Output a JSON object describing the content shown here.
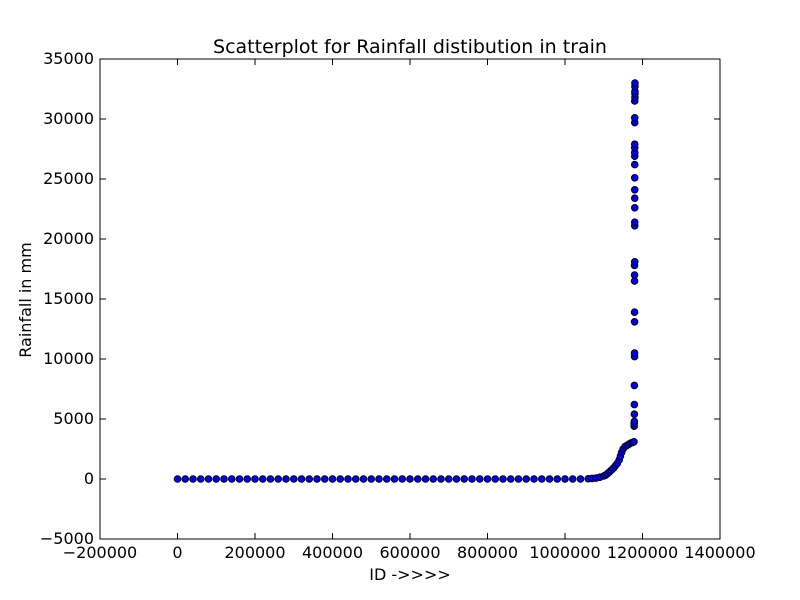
{
  "chart_data": {
    "type": "scatter",
    "title": "Scatterplot for Rainfall distibution in train",
    "xlabel": "ID ->>>>",
    "ylabel": "Rainfall in mm",
    "xlim": [
      -200000,
      1400000
    ],
    "ylim": [
      -5000,
      35000
    ],
    "xticks": [
      -200000,
      0,
      200000,
      400000,
      600000,
      800000,
      1000000,
      1200000,
      1400000
    ],
    "yticks": [
      -5000,
      0,
      5000,
      10000,
      15000,
      20000,
      25000,
      30000,
      35000
    ],
    "grid": false,
    "marker_color": "#0000ff",
    "marker_edge_color": "#000000",
    "series": [
      {
        "points": [
          [
            0,
            0
          ],
          [
            20000,
            0
          ],
          [
            40000,
            0
          ],
          [
            60000,
            0
          ],
          [
            80000,
            0
          ],
          [
            100000,
            0
          ],
          [
            120000,
            0
          ],
          [
            140000,
            0
          ],
          [
            160000,
            0
          ],
          [
            180000,
            0
          ],
          [
            200000,
            0
          ],
          [
            220000,
            0
          ],
          [
            240000,
            0
          ],
          [
            260000,
            0
          ],
          [
            280000,
            0
          ],
          [
            300000,
            0
          ],
          [
            320000,
            0
          ],
          [
            340000,
            0
          ],
          [
            360000,
            0
          ],
          [
            380000,
            0
          ],
          [
            400000,
            0
          ],
          [
            420000,
            0
          ],
          [
            440000,
            0
          ],
          [
            460000,
            0
          ],
          [
            480000,
            0
          ],
          [
            500000,
            0
          ],
          [
            520000,
            0
          ],
          [
            540000,
            0
          ],
          [
            560000,
            0
          ],
          [
            580000,
            0
          ],
          [
            600000,
            0
          ],
          [
            620000,
            0
          ],
          [
            640000,
            0
          ],
          [
            660000,
            0
          ],
          [
            680000,
            0
          ],
          [
            700000,
            0
          ],
          [
            720000,
            0
          ],
          [
            740000,
            0
          ],
          [
            760000,
            0
          ],
          [
            780000,
            0
          ],
          [
            800000,
            0
          ],
          [
            820000,
            0
          ],
          [
            840000,
            0
          ],
          [
            860000,
            0
          ],
          [
            880000,
            0
          ],
          [
            900000,
            0
          ],
          [
            920000,
            0
          ],
          [
            940000,
            0
          ],
          [
            960000,
            0
          ],
          [
            980000,
            0
          ],
          [
            1000000,
            0
          ],
          [
            1020000,
            0
          ],
          [
            1040000,
            0
          ],
          [
            1060000,
            20
          ],
          [
            1070000,
            50
          ],
          [
            1080000,
            80
          ],
          [
            1090000,
            150
          ],
          [
            1100000,
            250
          ],
          [
            1105000,
            330
          ],
          [
            1110000,
            450
          ],
          [
            1115000,
            600
          ],
          [
            1120000,
            750
          ],
          [
            1125000,
            900
          ],
          [
            1130000,
            1100
          ],
          [
            1135000,
            1300
          ],
          [
            1140000,
            1600
          ],
          [
            1143000,
            1900
          ],
          [
            1146000,
            2200
          ],
          [
            1150000,
            2500
          ],
          [
            1155000,
            2700
          ],
          [
            1160000,
            2800
          ],
          [
            1165000,
            2900
          ],
          [
            1170000,
            3000
          ],
          [
            1175000,
            3050
          ],
          [
            1178000,
            3100
          ],
          [
            1178500,
            4400
          ],
          [
            1178500,
            4600
          ],
          [
            1179000,
            4800
          ],
          [
            1179000,
            5400
          ],
          [
            1179000,
            6200
          ],
          [
            1179000,
            7800
          ],
          [
            1179500,
            10200
          ],
          [
            1179500,
            10500
          ],
          [
            1179500,
            13100
          ],
          [
            1179500,
            13900
          ],
          [
            1179500,
            16500
          ],
          [
            1179500,
            17000
          ],
          [
            1179500,
            17800
          ],
          [
            1180000,
            18100
          ],
          [
            1180000,
            21100
          ],
          [
            1180000,
            21400
          ],
          [
            1180000,
            22600
          ],
          [
            1180000,
            23400
          ],
          [
            1180000,
            24100
          ],
          [
            1180000,
            25100
          ],
          [
            1180000,
            26200
          ],
          [
            1180000,
            26900
          ],
          [
            1180000,
            27200
          ],
          [
            1180000,
            27600
          ],
          [
            1180000,
            27900
          ],
          [
            1180000,
            29700
          ],
          [
            1180000,
            30100
          ],
          [
            1180000,
            31500
          ],
          [
            1180500,
            31800
          ],
          [
            1180500,
            32100
          ],
          [
            1180500,
            32300
          ],
          [
            1180500,
            32700
          ],
          [
            1180500,
            33000
          ]
        ]
      }
    ]
  }
}
